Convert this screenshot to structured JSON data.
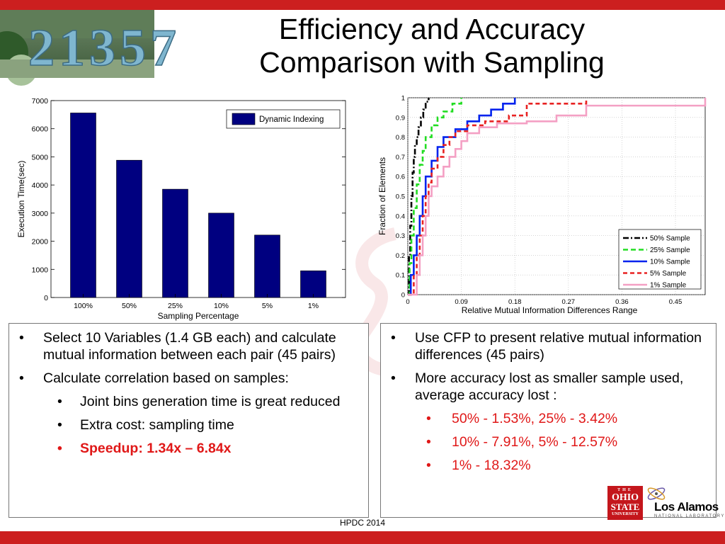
{
  "slide": {
    "title_line1": "Efficiency and Accuracy",
    "title_line2": "Comparison with Sampling",
    "footer": "HPDC 2014",
    "photo_digits": "21357",
    "colors": {
      "accent_red": "#cc1f1f",
      "bar_blue": "#000080",
      "emphasis_red": "#e01818"
    }
  },
  "left_panel": {
    "bullets": [
      {
        "bullet": "•",
        "text": "Select 10 Variables (1.4 GB each) and calculate mutual information between each pair (45 pairs)"
      },
      {
        "bullet": "•",
        "text": "Calculate correlation based on samples:"
      }
    ],
    "sub_bullets": [
      {
        "bullet": "•",
        "text": "Joint bins generation time is great reduced"
      },
      {
        "bullet": "•",
        "text": "Extra cost: sampling time"
      },
      {
        "bullet": "•",
        "text": "Speedup: 1.34x – 6.84x"
      }
    ]
  },
  "right_panel": {
    "bullets": [
      {
        "bullet": "•",
        "text": "Use CFP to present relative mutual information differences (45 pairs)"
      },
      {
        "bullet": "•",
        "text": "More accuracy lost as smaller sample used, average accuracy lost :"
      }
    ],
    "sub_bullets": [
      {
        "bullet": "•",
        "text": "50% - 1.53%,  25% - 3.42%"
      },
      {
        "bullet": "•",
        "text": "10% - 7.91%,  5% - 12.57%"
      },
      {
        "bullet": "•",
        "text": "1% - 18.32%"
      }
    ]
  },
  "logos": {
    "osu_line1": "THE",
    "osu_line2": "OHIO",
    "osu_line3": "STATE",
    "osu_line4": "UNIVERSITY",
    "la_name": "Los Alamos",
    "la_sub": "NATIONAL LABORATORY"
  },
  "chart_data": [
    {
      "type": "bar",
      "categories": [
        "100%",
        "50%",
        "25%",
        "10%",
        "5%",
        "1%"
      ],
      "series": [
        {
          "name": "Dynamic Indexing",
          "values": [
            6560,
            4880,
            3850,
            3000,
            2220,
            950
          ],
          "color": "#000080"
        }
      ],
      "xlabel": "Sampling Percentage",
      "ylabel": "Execution Time(sec)",
      "ylim": [
        0,
        7000
      ],
      "yticks": [
        "0",
        "1000",
        "2000",
        "3000",
        "4000",
        "5000",
        "6000",
        "7000"
      ],
      "legend": "top-right",
      "grid": false
    },
    {
      "type": "line",
      "xlabel": "Relative Mutual Information Differences Range",
      "ylabel": "Fraction of Elements",
      "xlim": [
        0,
        0.5
      ],
      "ylim": [
        0,
        1
      ],
      "xticks": [
        "0",
        "0.09",
        "0.18",
        "0.27",
        "0.36",
        "0.45"
      ],
      "yticks": [
        "0",
        "0.1",
        "0.2",
        "0.3",
        "0.4",
        "0.5",
        "0.6",
        "0.7",
        "0.8",
        "0.9",
        "1"
      ],
      "grid": true,
      "legend": "bottom-right",
      "series": [
        {
          "name": "50% Sample",
          "color": "#000000",
          "dash": "8,3,2,3",
          "x": [
            0,
            0.002,
            0.004,
            0.006,
            0.008,
            0.01,
            0.012,
            0.015,
            0.018,
            0.022,
            0.026,
            0.03,
            0.035
          ],
          "y": [
            0,
            0.2,
            0.35,
            0.5,
            0.62,
            0.7,
            0.76,
            0.8,
            0.85,
            0.9,
            0.94,
            0.98,
            1
          ]
        },
        {
          "name": "25% Sample",
          "color": "#22dd22",
          "dash": "7,4",
          "x": [
            0,
            0.003,
            0.006,
            0.01,
            0.015,
            0.02,
            0.025,
            0.03,
            0.04,
            0.05,
            0.06,
            0.075,
            0.09
          ],
          "y": [
            0,
            0.16,
            0.3,
            0.44,
            0.56,
            0.66,
            0.73,
            0.8,
            0.86,
            0.9,
            0.93,
            0.97,
            1
          ]
        },
        {
          "name": "10% Sample",
          "color": "#0022ee",
          "dash": "",
          "x": [
            0,
            0.005,
            0.01,
            0.015,
            0.02,
            0.025,
            0.03,
            0.04,
            0.05,
            0.06,
            0.08,
            0.1,
            0.12,
            0.14,
            0.16,
            0.18
          ],
          "y": [
            0,
            0.1,
            0.2,
            0.3,
            0.4,
            0.5,
            0.6,
            0.68,
            0.75,
            0.8,
            0.84,
            0.88,
            0.91,
            0.94,
            0.97,
            1
          ]
        },
        {
          "name": "5% Sample",
          "color": "#e82222",
          "dash": "6,4",
          "x": [
            0,
            0.01,
            0.015,
            0.02,
            0.025,
            0.03,
            0.035,
            0.04,
            0.05,
            0.06,
            0.07,
            0.08,
            0.1,
            0.13,
            0.17,
            0.2,
            0.25,
            0.3
          ],
          "y": [
            0,
            0.1,
            0.2,
            0.3,
            0.4,
            0.5,
            0.57,
            0.64,
            0.7,
            0.76,
            0.8,
            0.83,
            0.86,
            0.88,
            0.91,
            0.97,
            0.97,
            1
          ]
        },
        {
          "name": "1% Sample",
          "color": "#f4a0c4",
          "dash": "",
          "x": [
            0,
            0.015,
            0.02,
            0.025,
            0.03,
            0.035,
            0.04,
            0.05,
            0.06,
            0.07,
            0.08,
            0.09,
            0.1,
            0.12,
            0.15,
            0.2,
            0.25,
            0.3,
            0.4,
            0.5
          ],
          "y": [
            0,
            0.1,
            0.2,
            0.3,
            0.4,
            0.5,
            0.55,
            0.6,
            0.65,
            0.7,
            0.74,
            0.78,
            0.82,
            0.85,
            0.87,
            0.88,
            0.91,
            0.96,
            0.96,
            1
          ]
        }
      ]
    }
  ]
}
